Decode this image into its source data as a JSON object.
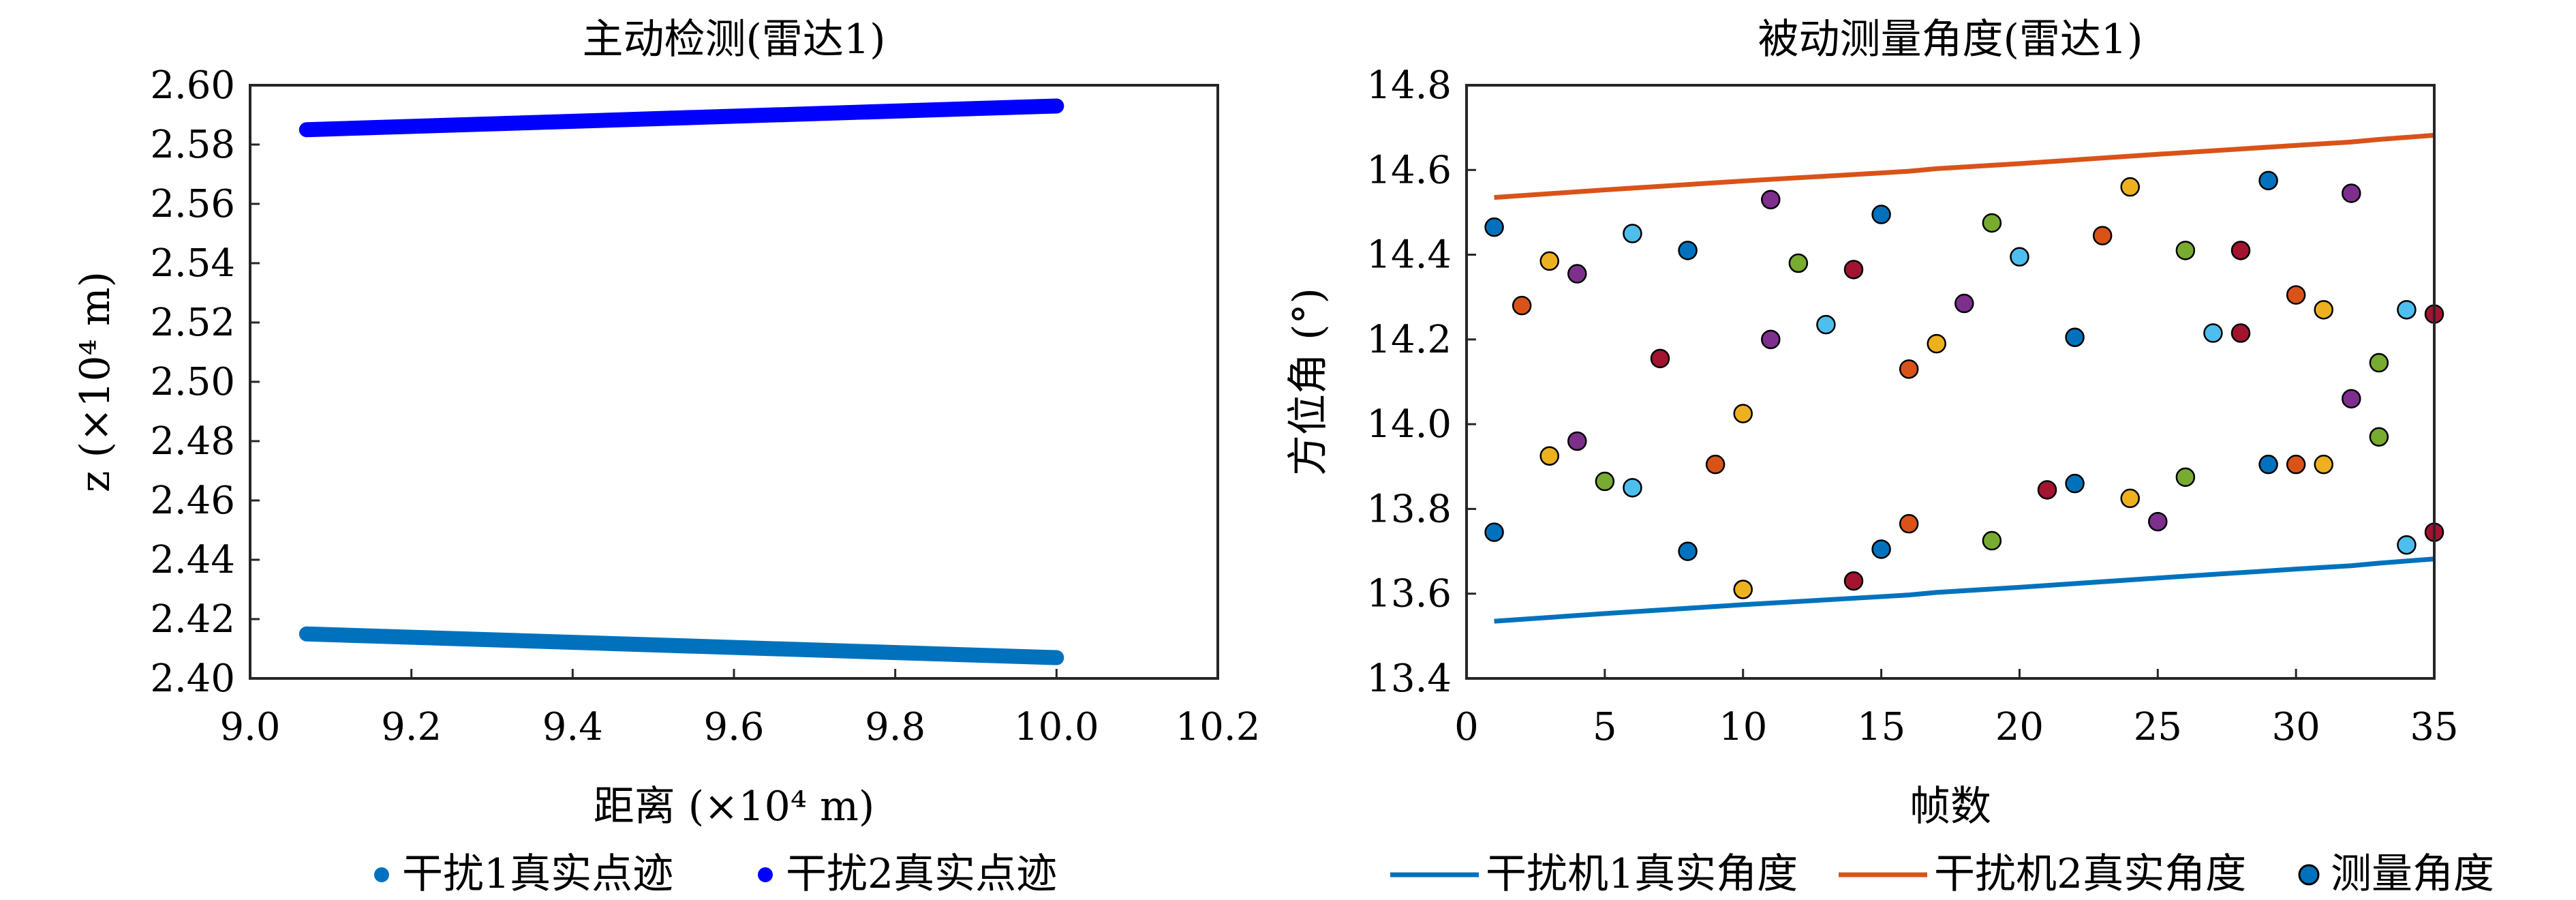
{
  "chart_data": [
    {
      "type": "scatter",
      "title": "主动检测(雷达1)",
      "xlabel": "距离 (×10⁴ m)",
      "ylabel": "z (×10⁴ m)",
      "xlim": [
        9.0,
        10.2
      ],
      "ylim": [
        2.4,
        2.6
      ],
      "xticks": [
        "9.0",
        "9.2",
        "9.4",
        "9.6",
        "9.8",
        "10.0",
        "10.2"
      ],
      "yticks": [
        "2.40",
        "2.42",
        "2.44",
        "2.46",
        "2.48",
        "2.50",
        "2.52",
        "2.54",
        "2.56",
        "2.58",
        "2.60"
      ],
      "grid": false,
      "legend_position": "bottom",
      "series": [
        {
          "name": "干扰1真实点迹",
          "color": "#0072BD",
          "x": [
            9.07,
            10.0
          ],
          "y": [
            2.415,
            2.407
          ]
        },
        {
          "name": "干扰2真实点迹",
          "color": "#0000FF",
          "x": [
            9.07,
            10.0
          ],
          "y": [
            2.585,
            2.593
          ]
        }
      ]
    },
    {
      "type": "line",
      "title": "被动测量角度(雷达1)",
      "xlabel": "帧数",
      "ylabel": "方位角 (°)",
      "xlim": [
        0,
        35
      ],
      "ylim": [
        13.4,
        14.8
      ],
      "xticks": [
        "0",
        "5",
        "10",
        "15",
        "20",
        "25",
        "30",
        "35"
      ],
      "yticks": [
        "13.4",
        "13.6",
        "13.8",
        "14.0",
        "14.2",
        "14.4",
        "14.6",
        "14.8"
      ],
      "grid": false,
      "legend_position": "bottom",
      "series": [
        {
          "name": "干扰机1真实角度",
          "type": "line",
          "color": "#0072BD",
          "x": [
            1,
            5,
            10,
            15,
            16,
            17,
            20,
            25,
            30,
            32,
            33,
            35
          ],
          "y": [
            13.535,
            13.553,
            13.574,
            13.593,
            13.597,
            13.603,
            13.615,
            13.637,
            13.658,
            13.666,
            13.672,
            13.682
          ]
        },
        {
          "name": "干扰机2真实角度",
          "type": "line",
          "color": "#D95319",
          "x": [
            1,
            5,
            10,
            15,
            16,
            17,
            20,
            25,
            30,
            32,
            33,
            35
          ],
          "y": [
            14.535,
            14.553,
            14.574,
            14.593,
            14.597,
            14.603,
            14.615,
            14.637,
            14.658,
            14.666,
            14.672,
            14.682
          ]
        },
        {
          "name": "测量角度",
          "type": "scatter",
          "color": "#0072BD",
          "points": [
            [
              1,
              14.465,
              "#0072BD"
            ],
            [
              1,
              13.745,
              "#0072BD"
            ],
            [
              2,
              14.28,
              "#D95319"
            ],
            [
              3,
              14.385,
              "#EDB120"
            ],
            [
              3,
              13.925,
              "#EDB120"
            ],
            [
              4,
              14.355,
              "#7E2F8E"
            ],
            [
              4,
              13.96,
              "#7E2F8E"
            ],
            [
              5,
              13.865,
              "#77AC30"
            ],
            [
              6,
              14.45,
              "#4DBEEE"
            ],
            [
              6,
              13.85,
              "#4DBEEE"
            ],
            [
              7,
              14.155,
              "#A2142F"
            ],
            [
              8,
              14.41,
              "#0072BD"
            ],
            [
              8,
              13.7,
              "#0072BD"
            ],
            [
              9,
              13.905,
              "#D95319"
            ],
            [
              10,
              14.025,
              "#EDB120"
            ],
            [
              10,
              13.61,
              "#EDB120"
            ],
            [
              11,
              14.53,
              "#7E2F8E"
            ],
            [
              11,
              14.2,
              "#7E2F8E"
            ],
            [
              12,
              14.38,
              "#77AC30"
            ],
            [
              13,
              14.235,
              "#4DBEEE"
            ],
            [
              14,
              14.365,
              "#A2142F"
            ],
            [
              14,
              13.63,
              "#A2142F"
            ],
            [
              15,
              14.495,
              "#0072BD"
            ],
            [
              15,
              13.705,
              "#0072BD"
            ],
            [
              16,
              14.13,
              "#D95319"
            ],
            [
              16,
              13.765,
              "#D95319"
            ],
            [
              17,
              14.19,
              "#EDB120"
            ],
            [
              18,
              14.285,
              "#7E2F8E"
            ],
            [
              19,
              14.475,
              "#77AC30"
            ],
            [
              19,
              13.725,
              "#77AC30"
            ],
            [
              20,
              14.395,
              "#4DBEEE"
            ],
            [
              21,
              13.845,
              "#A2142F"
            ],
            [
              22,
              14.205,
              "#0072BD"
            ],
            [
              22,
              13.86,
              "#0072BD"
            ],
            [
              23,
              14.445,
              "#D95319"
            ],
            [
              24,
              14.56,
              "#EDB120"
            ],
            [
              24,
              13.825,
              "#EDB120"
            ],
            [
              25,
              13.77,
              "#7E2F8E"
            ],
            [
              26,
              14.41,
              "#77AC30"
            ],
            [
              26,
              13.875,
              "#77AC30"
            ],
            [
              27,
              14.215,
              "#4DBEEE"
            ],
            [
              28,
              14.41,
              "#A2142F"
            ],
            [
              28,
              14.215,
              "#A2142F"
            ],
            [
              29,
              14.575,
              "#0072BD"
            ],
            [
              29,
              13.905,
              "#0072BD"
            ],
            [
              30,
              14.305,
              "#D95319"
            ],
            [
              30,
              13.905,
              "#D95319"
            ],
            [
              31,
              14.27,
              "#EDB120"
            ],
            [
              31,
              13.905,
              "#EDB120"
            ],
            [
              32,
              14.545,
              "#7E2F8E"
            ],
            [
              32,
              14.06,
              "#7E2F8E"
            ],
            [
              33,
              14.145,
              "#77AC30"
            ],
            [
              33,
              13.97,
              "#77AC30"
            ],
            [
              34,
              14.27,
              "#4DBEEE"
            ],
            [
              34,
              13.715,
              "#4DBEEE"
            ],
            [
              35,
              14.26,
              "#A2142F"
            ],
            [
              35,
              13.745,
              "#A2142F"
            ]
          ]
        }
      ]
    }
  ]
}
